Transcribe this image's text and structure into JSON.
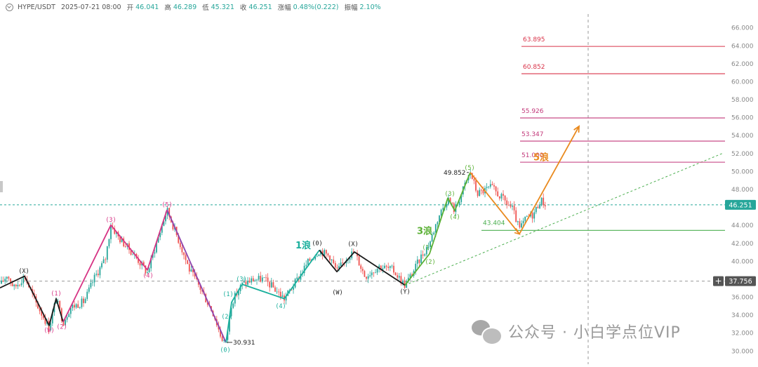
{
  "header": {
    "symbol": "HYPE/USDT",
    "timestamp": "2025-07-21 08:00",
    "open_label": "开",
    "open": "46.041",
    "high_label": "高",
    "high": "46.289",
    "low_label": "低",
    "low": "45.321",
    "close_label": "收",
    "close": "46.251",
    "change_label": "涨幅",
    "change": "0.48%(0.222)",
    "amp_label": "振幅",
    "amp": "2.10%",
    "icon": "chevron-circle-icon"
  },
  "watermark": {
    "text": "公众号 · 小白学点位VIP",
    "icon": "wechat-icon"
  },
  "chart_data": {
    "type": "candlestick",
    "ylim": [
      28.5,
      67.5
    ],
    "y_ticks": [
      28.0,
      30.0,
      32.0,
      34.0,
      36.0,
      38.0,
      40.0,
      42.0,
      44.0,
      46.0,
      48.0,
      50.0,
      52.0,
      54.0,
      56.0,
      58.0,
      60.0,
      62.0,
      64.0,
      66.0
    ],
    "current_price": "46.251",
    "crosshair_price": "37.756",
    "colors": {
      "up": "#26a69a",
      "down": "#ef5350",
      "impulse": "#d63384",
      "abc": "#8e44ad",
      "wave": "#1aaf9c",
      "black": "#1a1a1a",
      "green": "#5ab034",
      "orange": "#e98a1f",
      "target_red": "#d9344a",
      "target_pink": "#c2387a",
      "support": "#4caf50"
    },
    "ohlc": [
      [
        0,
        37.2
      ],
      [
        10,
        38.5
      ],
      [
        20,
        37.0
      ],
      [
        35,
        38.3
      ],
      [
        50,
        35.5
      ],
      [
        70,
        32.6
      ],
      [
        80,
        35.8
      ],
      [
        90,
        33.2
      ],
      [
        100,
        34.8
      ],
      [
        120,
        35.5
      ],
      [
        135,
        38.2
      ],
      [
        150,
        40.2
      ],
      [
        158,
        44.0
      ],
      [
        170,
        42.5
      ],
      [
        190,
        40.8
      ],
      [
        210,
        38.7
      ],
      [
        225,
        42.5
      ],
      [
        238,
        45.7
      ],
      [
        255,
        42.2
      ],
      [
        270,
        39.0
      ],
      [
        285,
        37.0
      ],
      [
        305,
        34.0
      ],
      [
        315,
        31.5
      ],
      [
        322,
        30.9
      ],
      [
        330,
        35.4
      ],
      [
        345,
        37.4
      ],
      [
        360,
        37.9
      ],
      [
        375,
        38.0
      ],
      [
        390,
        37.0
      ],
      [
        405,
        35.8
      ],
      [
        420,
        37.5
      ],
      [
        440,
        40.0
      ],
      [
        455,
        41.2
      ],
      [
        470,
        40.5
      ],
      [
        480,
        38.8
      ],
      [
        495,
        40.5
      ],
      [
        505,
        41.0
      ],
      [
        520,
        38.3
      ],
      [
        540,
        39.4
      ],
      [
        560,
        39.0
      ],
      [
        577,
        37.3
      ],
      [
        590,
        39.0
      ],
      [
        600,
        40.5
      ],
      [
        612,
        42.0
      ],
      [
        625,
        45.0
      ],
      [
        638,
        47.0
      ],
      [
        648,
        45.6
      ],
      [
        660,
        48.0
      ],
      [
        670,
        49.9
      ],
      [
        680,
        47.5
      ],
      [
        700,
        48.2
      ],
      [
        715,
        47.0
      ],
      [
        730,
        45.8
      ],
      [
        740,
        43.5
      ],
      [
        750,
        44.8
      ],
      [
        760,
        45.2
      ],
      [
        770,
        46.8
      ],
      [
        778,
        46.25
      ]
    ],
    "waves": [
      {
        "color": "black",
        "points": [
          [
            0,
            37.0
          ],
          [
            35,
            38.3
          ],
          [
            70,
            32.8
          ],
          [
            80,
            35.8
          ],
          [
            90,
            33.2
          ]
        ]
      },
      {
        "color": "impulse",
        "points": [
          [
            90,
            33.2
          ],
          [
            158,
            44.0
          ],
          [
            210,
            39.0
          ],
          [
            238,
            45.7
          ]
        ]
      },
      {
        "color": "abc",
        "points": [
          [
            238,
            45.7
          ],
          [
            322,
            30.9
          ]
        ]
      },
      {
        "color": "wave",
        "points": [
          [
            322,
            30.9
          ],
          [
            330,
            35.4
          ],
          [
            345,
            37.4
          ],
          [
            405,
            35.8
          ],
          [
            455,
            41.2
          ]
        ]
      },
      {
        "color": "black",
        "points": [
          [
            455,
            41.2
          ],
          [
            480,
            38.8
          ],
          [
            505,
            41.0
          ],
          [
            577,
            37.3
          ]
        ]
      },
      {
        "color": "green",
        "points": [
          [
            577,
            37.3
          ],
          [
            612,
            40.8
          ],
          [
            638,
            47.0
          ],
          [
            648,
            45.6
          ],
          [
            670,
            49.85
          ]
        ]
      },
      {
        "color": "orange",
        "points": [
          [
            670,
            49.85
          ],
          [
            740,
            43.0
          ],
          [
            825,
            55.0
          ]
        ]
      }
    ],
    "wave_labels": [
      {
        "text": "(X)",
        "x": 34,
        "y": 38.9,
        "color": "black"
      },
      {
        "text": "(W)",
        "x": 70,
        "y": 32.3,
        "color": "impulse"
      },
      {
        "text": "(1)",
        "x": 80,
        "y": 36.4,
        "color": "impulse"
      },
      {
        "text": "(2)",
        "x": 88,
        "y": 32.7,
        "color": "impulse"
      },
      {
        "text": "(3)",
        "x": 158,
        "y": 44.6,
        "color": "impulse"
      },
      {
        "text": "(4)",
        "x": 211,
        "y": 38.4,
        "color": "impulse"
      },
      {
        "text": "(5)",
        "x": 238,
        "y": 46.3,
        "color": "impulse"
      },
      {
        "text": "(1)",
        "x": 325,
        "y": 36.3,
        "color": "wave"
      },
      {
        "text": "(2)",
        "x": 323,
        "y": 33.8,
        "color": "wave"
      },
      {
        "text": "(3)",
        "x": 344,
        "y": 38.0,
        "color": "wave"
      },
      {
        "text": "(4)",
        "x": 400,
        "y": 35.0,
        "color": "wave"
      },
      {
        "text": "(0)",
        "x": 321,
        "y": 30.1,
        "color": "wave"
      },
      {
        "text": "(0)",
        "x": 452,
        "y": 42.0,
        "color": "black"
      },
      {
        "text": "(X)",
        "x": 503,
        "y": 41.9,
        "color": "black"
      },
      {
        "text": "(W)",
        "x": 481,
        "y": 36.5,
        "color": "black"
      },
      {
        "text": "(Y)",
        "x": 577,
        "y": 36.6,
        "color": "black"
      },
      {
        "text": "(1)",
        "x": 609,
        "y": 41.5,
        "color": "green"
      },
      {
        "text": "(2)",
        "x": 613,
        "y": 39.9,
        "color": "green"
      },
      {
        "text": "(3)",
        "x": 641,
        "y": 47.5,
        "color": "green"
      },
      {
        "text": "(4)",
        "x": 648,
        "y": 44.9,
        "color": "green"
      },
      {
        "text": "(5)",
        "x": 669,
        "y": 50.4,
        "color": "green"
      }
    ],
    "big_labels": [
      {
        "text": "1浪",
        "x": 432,
        "y": 41.8,
        "color": "wave"
      },
      {
        "text": "3浪",
        "x": 605,
        "y": 43.4,
        "color": "green"
      },
      {
        "text": "5浪",
        "x": 771,
        "y": 51.6,
        "color": "orange"
      }
    ],
    "target_levels": [
      {
        "value": 63.895,
        "label": "63.895",
        "color": "target_red",
        "x1": 743
      },
      {
        "value": 60.852,
        "label": "60.852",
        "color": "target_red",
        "x1": 743
      },
      {
        "value": 55.926,
        "label": "55.926",
        "color": "target_pink",
        "x1": 741
      },
      {
        "value": 53.347,
        "label": "53.347",
        "color": "target_pink",
        "x1": 741
      },
      {
        "value": 51.0,
        "label": "51.000",
        "color": "target_pink",
        "x1": 741
      }
    ],
    "support_level": {
      "value": 43.404,
      "label": "43.404",
      "x1": 686
    },
    "annotations": [
      {
        "text": "49.852",
        "x": 632,
        "y": 49.852,
        "arrow_to": 668
      },
      {
        "text": "30.931",
        "x": 332,
        "y": 30.931,
        "arrow_from": 323
      }
    ],
    "trendline": {
      "from": [
        577,
        37.3
      ],
      "to": [
        1030,
        52.0
      ]
    },
    "current_x": 838
  }
}
